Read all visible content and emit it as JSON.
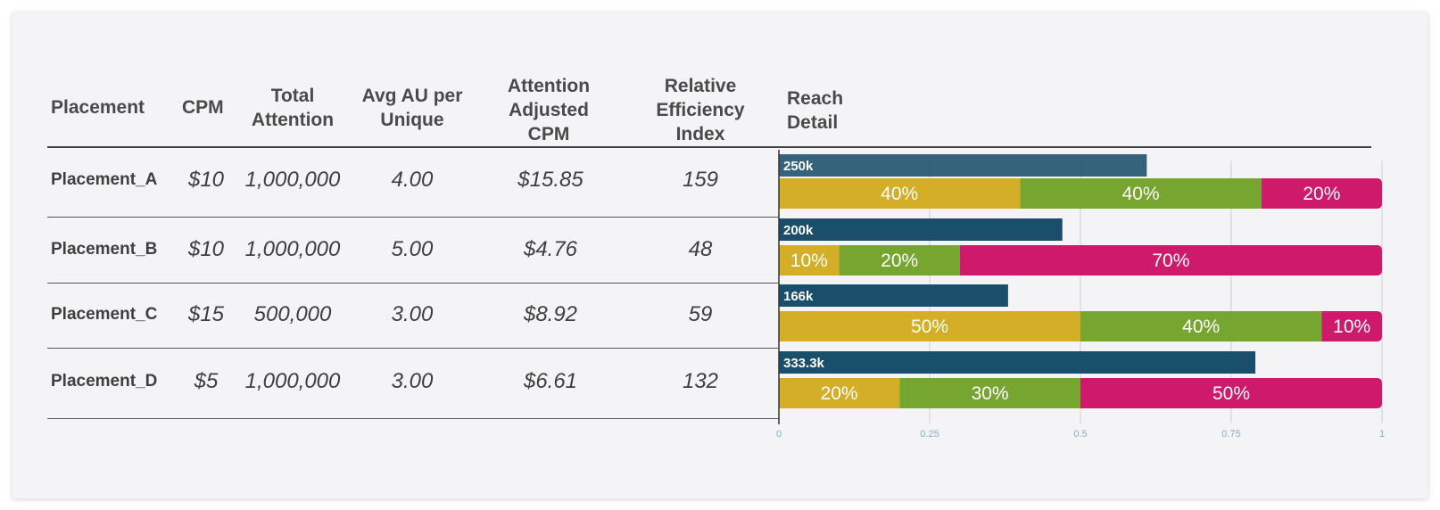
{
  "table": {
    "headers": {
      "placement": "Placement",
      "cpm": "CPM",
      "total_attention": [
        "Total",
        "Attention"
      ],
      "avg_au": [
        "Avg AU per",
        "Unique"
      ],
      "aacpm": [
        "Attention",
        "Adjusted",
        "CPM"
      ],
      "rei": [
        "Relative",
        "Efficiency",
        "Index"
      ],
      "reach": [
        "Reach",
        "Detail"
      ]
    },
    "rows": [
      {
        "placement": "Placement_A",
        "cpm": "$10",
        "total_attention": "1,000,000",
        "avg_au": "4.00",
        "aacpm": "$15.85",
        "rei": "159"
      },
      {
        "placement": "Placement_B",
        "cpm": "$10",
        "total_attention": "1,000,000",
        "avg_au": "5.00",
        "aacpm": "$4.76",
        "rei": "48"
      },
      {
        "placement": "Placement_C",
        "cpm": "$15",
        "total_attention": "500,000",
        "avg_au": "3.00",
        "aacpm": "$8.92",
        "rei": "59"
      },
      {
        "placement": "Placement_D",
        "cpm": "$5",
        "total_attention": "1,000,000",
        "avg_au": "3.00",
        "aacpm": "$6.61",
        "rei": "132"
      }
    ]
  },
  "chart_data": {
    "type": "bar",
    "categories": [
      "Placement_A",
      "Placement_B",
      "Placement_C",
      "Placement_D"
    ],
    "reach": {
      "values": [
        0.61,
        0.47,
        0.38,
        0.79
      ],
      "labels": [
        "250k",
        "200k",
        "166k",
        "333.3k"
      ],
      "color": "#1a4f6b"
    },
    "segments": {
      "colors": [
        "#d4ae27",
        "#76a530",
        "#cf1a6c"
      ],
      "values": [
        [
          0.4,
          0.4,
          0.2
        ],
        [
          0.1,
          0.2,
          0.7
        ],
        [
          0.5,
          0.4,
          0.1
        ],
        [
          0.2,
          0.3,
          0.5
        ]
      ],
      "labels": [
        [
          "40%",
          "40%",
          "20%"
        ],
        [
          "10%",
          "20%",
          "70%"
        ],
        [
          "50%",
          "40%",
          "10%"
        ],
        [
          "20%",
          "30%",
          "50%"
        ]
      ]
    },
    "xlim": [
      0,
      1
    ],
    "xticks": [
      0,
      0.25,
      0.5,
      0.75,
      1
    ],
    "xtick_labels": [
      "0",
      "0.25",
      "0.5",
      "0.75",
      "1"
    ],
    "grid": true
  }
}
